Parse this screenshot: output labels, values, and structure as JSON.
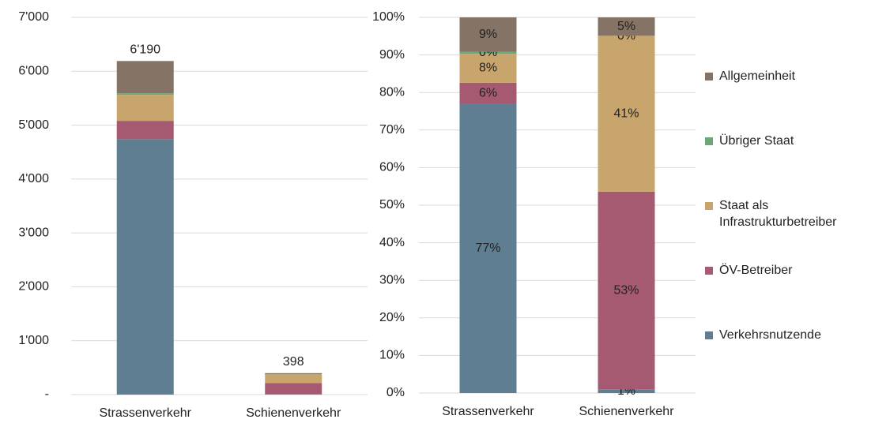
{
  "chart_data": [
    {
      "type": "stacked-bar",
      "categories": [
        "Strassenverkehr",
        "Schienenverkehr"
      ],
      "series": [
        {
          "color": "#5f7e92",
          "values": [
            4740,
            4
          ]
        },
        {
          "color": "#a65a72",
          "values": [
            340,
            211
          ]
        },
        {
          "color": "#c9a56e",
          "values": [
            483,
            163
          ]
        },
        {
          "color": "#6aa877",
          "values": [
            29,
            0
          ]
        },
        {
          "color": "#857365",
          "values": [
            598,
            20
          ]
        }
      ],
      "totals": [
        6190,
        398
      ],
      "total_labels": [
        "6'190",
        "398"
      ],
      "ylim": [
        0,
        7000
      ],
      "yticks": [
        {
          "value": 0,
          "label": "-"
        },
        {
          "value": 1000,
          "label": "1'000"
        },
        {
          "value": 2000,
          "label": "2'000"
        },
        {
          "value": 3000,
          "label": "3'000"
        },
        {
          "value": 4000,
          "label": "4'000"
        },
        {
          "value": 5000,
          "label": "5'000"
        },
        {
          "value": 6000,
          "label": "6'000"
        },
        {
          "value": 7000,
          "label": "7'000"
        }
      ],
      "grid": true
    },
    {
      "type": "stacked-bar",
      "categories": [
        "Strassenverkehr",
        "Schienenverkehr"
      ],
      "series": [
        {
          "name": "Verkehrsnutzende",
          "color": "#5f7e92",
          "values": [
            76.9,
            1
          ],
          "value_labels": [
            "77%",
            "1%"
          ]
        },
        {
          "name": "ÖV-Betreiber",
          "color": "#a65a72",
          "values": [
            5.7,
            52.6
          ],
          "value_labels": [
            "6%",
            "53%"
          ]
        },
        {
          "name": "Staat als Infrastrukturbetreiber",
          "color": "#c9a56e",
          "values": [
            7.7,
            41.4
          ],
          "value_labels": [
            "8%",
            "41%"
          ]
        },
        {
          "name": "Übriger Staat",
          "color": "#6aa877",
          "values": [
            0.5,
            0.1
          ],
          "value_labels": [
            "0%",
            "0%"
          ]
        },
        {
          "name": "Allgemeinheit",
          "color": "#857365",
          "values": [
            9.2,
            4.9
          ],
          "value_labels": [
            "9%",
            "5%"
          ]
        }
      ],
      "ylim": [
        0,
        100
      ],
      "yticks": [
        {
          "value": 0,
          "label": "0%"
        },
        {
          "value": 10,
          "label": "10%"
        },
        {
          "value": 20,
          "label": "20%"
        },
        {
          "value": 30,
          "label": "30%"
        },
        {
          "value": 40,
          "label": "40%"
        },
        {
          "value": 50,
          "label": "50%"
        },
        {
          "value": 60,
          "label": "60%"
        },
        {
          "value": 70,
          "label": "70%"
        },
        {
          "value": 80,
          "label": "80%"
        },
        {
          "value": 90,
          "label": "90%"
        },
        {
          "value": 100,
          "label": "100%"
        }
      ],
      "grid": true,
      "legend": "right"
    }
  ]
}
